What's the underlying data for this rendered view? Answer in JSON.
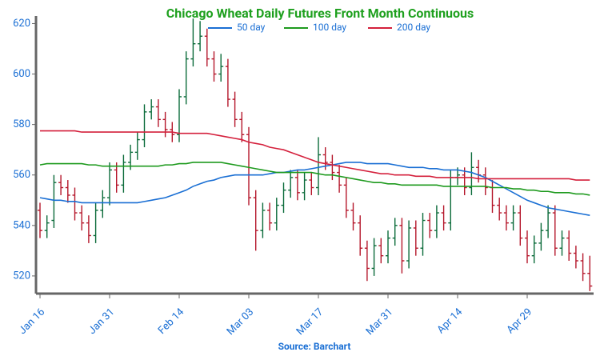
{
  "chart_data": {
    "type": "ohlc",
    "title": "Chicago Wheat Daily Futures Front Month Continuous",
    "source": "Source: Barchart",
    "categories": [
      "Jan 16",
      null,
      null,
      null,
      null,
      null,
      null,
      null,
      null,
      null,
      "Jan 31",
      null,
      null,
      null,
      null,
      null,
      null,
      null,
      null,
      null,
      "Feb 14",
      null,
      null,
      null,
      null,
      null,
      null,
      null,
      null,
      null,
      "Mar 03",
      null,
      null,
      null,
      null,
      null,
      null,
      null,
      null,
      null,
      "Mar 17",
      null,
      null,
      null,
      null,
      null,
      null,
      null,
      null,
      null,
      "Mar 31",
      null,
      null,
      null,
      null,
      null,
      null,
      null,
      null,
      null,
      "Apr 14",
      null,
      null,
      null,
      null,
      null,
      null,
      null,
      null,
      null,
      "Apr 29",
      null,
      null,
      null,
      null,
      null,
      null,
      null,
      null,
      null
    ],
    "ohlc": {
      "open": [
        546,
        538,
        542,
        557,
        555,
        552,
        545,
        541,
        536,
        546,
        551,
        562,
        556,
        565,
        569,
        574,
        585,
        587,
        582,
        578,
        576,
        591,
        606,
        612,
        615,
        606,
        600,
        603,
        590,
        582,
        576,
        551,
        538,
        546,
        541,
        548,
        554,
        559,
        553,
        558,
        555,
        568,
        565,
        561,
        556,
        546,
        541,
        531,
        523,
        532,
        528,
        535,
        540,
        526,
        539,
        531,
        542,
        538,
        545,
        541,
        559,
        560,
        555,
        563,
        560,
        555,
        548,
        545,
        541,
        545,
        535,
        528,
        533,
        538,
        545,
        531,
        535,
        529,
        526,
        521
      ],
      "high": [
        549,
        544,
        560,
        560,
        558,
        555,
        548,
        544,
        549,
        554,
        565,
        565,
        568,
        572,
        577,
        588,
        590,
        590,
        585,
        581,
        594,
        609,
        622,
        621,
        618,
        609,
        608,
        606,
        593,
        585,
        579,
        554,
        549,
        549,
        551,
        557,
        562,
        562,
        561,
        561,
        575,
        571,
        568,
        564,
        559,
        549,
        544,
        534,
        535,
        535,
        538,
        543,
        543,
        542,
        542,
        545,
        545,
        548,
        548,
        562,
        563,
        563,
        569,
        566,
        563,
        558,
        551,
        548,
        548,
        548,
        538,
        536,
        541,
        548,
        548,
        538,
        538,
        532,
        529,
        528
      ],
      "low": [
        535,
        535,
        539,
        552,
        549,
        542,
        538,
        533,
        533,
        543,
        548,
        553,
        553,
        562,
        566,
        571,
        582,
        579,
        575,
        573,
        573,
        588,
        603,
        609,
        603,
        597,
        597,
        587,
        579,
        573,
        548,
        530,
        535,
        538,
        538,
        545,
        551,
        550,
        550,
        552,
        552,
        562,
        558,
        553,
        543,
        538,
        528,
        518,
        520,
        525,
        525,
        532,
        521,
        523,
        528,
        528,
        535,
        535,
        538,
        538,
        556,
        552,
        552,
        557,
        552,
        545,
        542,
        538,
        538,
        532,
        525,
        525,
        530,
        535,
        528,
        528,
        526,
        523,
        518,
        514
      ],
      "close": [
        538,
        541,
        557,
        555,
        552,
        545,
        541,
        536,
        546,
        551,
        562,
        556,
        565,
        569,
        574,
        585,
        587,
        582,
        578,
        576,
        591,
        606,
        612,
        615,
        606,
        600,
        603,
        590,
        582,
        576,
        551,
        538,
        546,
        541,
        548,
        554,
        559,
        553,
        558,
        555,
        568,
        565,
        561,
        556,
        546,
        541,
        531,
        523,
        532,
        528,
        535,
        540,
        526,
        539,
        531,
        542,
        538,
        545,
        541,
        559,
        560,
        555,
        563,
        560,
        555,
        548,
        545,
        541,
        545,
        535,
        528,
        533,
        538,
        545,
        531,
        535,
        529,
        526,
        521,
        516
      ]
    },
    "up_color": "#0b6b3a",
    "down_color": "#b5172b",
    "series": [
      {
        "name": "50 day",
        "color": "#1a6fd4",
        "values": [
          551,
          550.5,
          550,
          550,
          549.5,
          549.5,
          549,
          549,
          549,
          549,
          549,
          549,
          549,
          549,
          549,
          549.5,
          550,
          550.5,
          551,
          552,
          553,
          554,
          555.5,
          556.5,
          557.5,
          558,
          559,
          559.5,
          560,
          560,
          560,
          560,
          560,
          560.5,
          561,
          561,
          561.5,
          562,
          562,
          562.5,
          563,
          563.5,
          564,
          564.5,
          565,
          565,
          565,
          564.5,
          564.5,
          564.5,
          564.5,
          564,
          563.5,
          563,
          563,
          563,
          562.5,
          562.5,
          562,
          562,
          562,
          561.5,
          561,
          560,
          559,
          557.5,
          556,
          554.5,
          553,
          551.5,
          550,
          549,
          548,
          547,
          546.5,
          546,
          545.5,
          545,
          544.5,
          544
        ]
      },
      {
        "name": "100 day",
        "color": "#1e9a1e",
        "values": [
          564,
          564.5,
          564.5,
          564.5,
          564.5,
          564.5,
          564.5,
          564,
          564,
          563.5,
          563.5,
          563.5,
          563.5,
          563.5,
          563.5,
          563.5,
          563.5,
          563.5,
          564,
          564,
          564.5,
          564.5,
          565,
          565,
          565,
          565,
          565,
          564.5,
          564,
          563.5,
          563,
          562.5,
          562,
          561.5,
          561,
          561,
          561,
          561,
          561,
          561,
          560.5,
          560,
          560,
          559.5,
          559,
          558.5,
          558,
          557.5,
          557,
          557,
          556.5,
          556.5,
          556,
          556,
          556,
          556,
          556,
          556,
          555.5,
          555.5,
          555.5,
          555.5,
          555.5,
          555.5,
          555.5,
          555,
          555,
          555,
          554.5,
          554.5,
          554,
          554,
          553.5,
          553.5,
          553,
          553,
          553,
          552.5,
          552.5,
          552
        ]
      },
      {
        "name": "200 day",
        "color": "#d4203c",
        "values": [
          577.5,
          577.5,
          577.5,
          577.5,
          577.5,
          577.5,
          577,
          577,
          577,
          577,
          577,
          577,
          577,
          577,
          577,
          577,
          577,
          577,
          577,
          577,
          576.5,
          576.5,
          576.5,
          576.5,
          576.5,
          576,
          575.5,
          575,
          574.5,
          574,
          573,
          572.5,
          572,
          571,
          570.5,
          570,
          569,
          568,
          567,
          566,
          565,
          564.5,
          564,
          563.5,
          563,
          562.5,
          562,
          561.5,
          561,
          560.5,
          560.5,
          560,
          560,
          560,
          559.5,
          559.5,
          559.5,
          559,
          559,
          559,
          559,
          559,
          559,
          558.5,
          558.5,
          558.5,
          558.5,
          558.5,
          558.5,
          558.5,
          558.5,
          558.5,
          558.5,
          558.5,
          558.5,
          558.5,
          558.5,
          558,
          558,
          558
        ]
      }
    ],
    "ylim": [
      513,
      623
    ],
    "yticks": [
      520,
      540,
      560,
      580,
      600,
      620
    ]
  }
}
